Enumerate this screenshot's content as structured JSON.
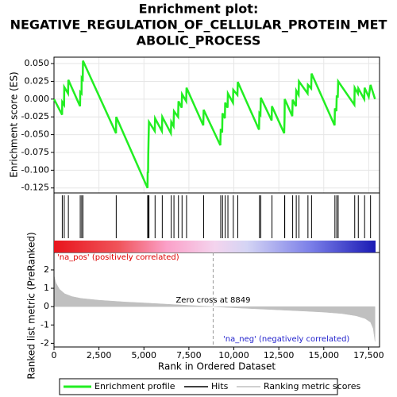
{
  "chart_data": [
    {
      "type": "line",
      "title": [
        "Enrichment plot:",
        "NEGATIVE_REGULATION_OF_CELLULAR_PROTEIN_MET",
        "ABOLIC_PROCESS"
      ],
      "y_label": "Enrichment score (ES)",
      "x": [
        0,
        450,
        460,
        560,
        570,
        780,
        800,
        1450,
        1460,
        1530,
        1540,
        1600,
        1610,
        3450,
        3460,
        5200,
        5210,
        5230,
        5240,
        5260,
        5280,
        5600,
        5620,
        6000,
        6020,
        6500,
        6520,
        6650,
        6670,
        6900,
        6920,
        7100,
        7120,
        7350,
        7370,
        8300,
        8320,
        9250,
        9270,
        9350,
        9370,
        9500,
        9520,
        9650,
        9670,
        9950,
        9970,
        10200,
        10220,
        11400,
        11420,
        11480,
        11500,
        12100,
        12120,
        12800,
        12820,
        12830,
        13250,
        13270,
        13450,
        13470,
        13600,
        13620,
        14100,
        14120,
        14300,
        14320,
        15600,
        15620,
        15700,
        15720,
        15780,
        15800,
        16700,
        16720,
        16900,
        16920,
        17250,
        17270,
        17500,
        17600,
        17850
      ],
      "series": [
        {
          "name": "Enrichment profile",
          "color": "#22ee22",
          "values": [
            0,
            -0.022,
            -0.004,
            -0.008,
            0.017,
            0.008,
            0.027,
            -0.01,
            0.01,
            0.008,
            0.03,
            0.028,
            0.054,
            -0.048,
            -0.025,
            -0.125,
            -0.102,
            -0.104,
            -0.08,
            -0.057,
            -0.032,
            -0.045,
            -0.027,
            -0.045,
            -0.025,
            -0.048,
            -0.032,
            -0.038,
            -0.017,
            -0.025,
            -0.003,
            -0.012,
            0.007,
            -0.003,
            0.016,
            -0.037,
            -0.015,
            -0.065,
            -0.042,
            -0.047,
            -0.02,
            -0.027,
            -0.005,
            -0.012,
            0.008,
            -0.005,
            0.013,
            0.006,
            0.024,
            -0.043,
            -0.02,
            -0.022,
            0.002,
            -0.03,
            -0.01,
            -0.048,
            -0.026,
            0.0,
            -0.024,
            -0.001,
            -0.01,
            0.012,
            0.006,
            0.025,
            0.008,
            0.02,
            0.015,
            0.036,
            -0.037,
            -0.013,
            -0.017,
            0.005,
            0.002,
            0.025,
            -0.008,
            0.016,
            0.008,
            0.015,
            0.0,
            0.016,
            0.003,
            0.02,
            0.0
          ]
        }
      ],
      "hits_name": "Hits",
      "hits": [
        460,
        570,
        800,
        1460,
        1540,
        1610,
        3460,
        5210,
        5240,
        5260,
        5280,
        5620,
        6020,
        6520,
        6670,
        6920,
        7120,
        7370,
        8320,
        9270,
        9370,
        9520,
        9670,
        9970,
        10220,
        11420,
        11500,
        12120,
        12820,
        12830,
        13270,
        13470,
        13620,
        14120,
        14320,
        15620,
        15720,
        15800,
        16720,
        16920,
        17270,
        17600
      ],
      "xlim": [
        0,
        18100
      ],
      "ylim": [
        -0.132,
        0.059
      ],
      "yticks": [
        {
          "value": -0.125,
          "label": "-0.125"
        },
        {
          "value": -0.1,
          "label": "-0.100"
        },
        {
          "value": -0.075,
          "label": "-0.075"
        },
        {
          "value": -0.05,
          "label": "-0.050"
        },
        {
          "value": -0.025,
          "label": "-0.025"
        },
        {
          "value": 0,
          "label": "0.000"
        },
        {
          "value": 0.025,
          "label": "0.025"
        },
        {
          "value": 0.05,
          "label": "0.050"
        }
      ],
      "grid": true
    },
    {
      "type": "area",
      "y_label": "Ranked list metric (PreRanked)",
      "x_label": "Rank in Ordered Dataset",
      "x": [
        0,
        100,
        300,
        600,
        1000,
        1500,
        2500,
        4000,
        5000,
        6500,
        8849,
        10000,
        12500,
        14000,
        15000,
        16000,
        16800,
        17300,
        17600,
        17750,
        17850
      ],
      "series": [
        {
          "name": "Ranking metric scores",
          "color": "#c0c0c0",
          "values": [
            1.7,
            1.3,
            0.95,
            0.7,
            0.55,
            0.45,
            0.35,
            0.25,
            0.2,
            0.12,
            0,
            -0.06,
            -0.18,
            -0.25,
            -0.3,
            -0.38,
            -0.5,
            -0.65,
            -0.85,
            -1.2,
            -1.9
          ]
        }
      ],
      "pos_label": "'na_pos' (positively correlated)",
      "neg_label": "'na_neg' (negatively correlated)",
      "zero_cross": 8849,
      "zero_cross_label": "Zero cross at 8849",
      "xlim": [
        0,
        18100
      ],
      "ylim": [
        -2.2,
        2.95
      ],
      "yticks": [
        -2,
        -1,
        0,
        1,
        2
      ],
      "xticks": [
        0,
        {
          "value": 2500,
          "label": "2,500"
        },
        {
          "value": 5000,
          "label": "5,000"
        },
        {
          "value": 7500,
          "label": "7,500"
        },
        {
          "value": 10000,
          "label": "10,000"
        },
        {
          "value": 12500,
          "label": "12,500"
        },
        {
          "value": 15000,
          "label": "15,000"
        },
        {
          "value": 17500,
          "label": "17,500"
        }
      ]
    }
  ]
}
